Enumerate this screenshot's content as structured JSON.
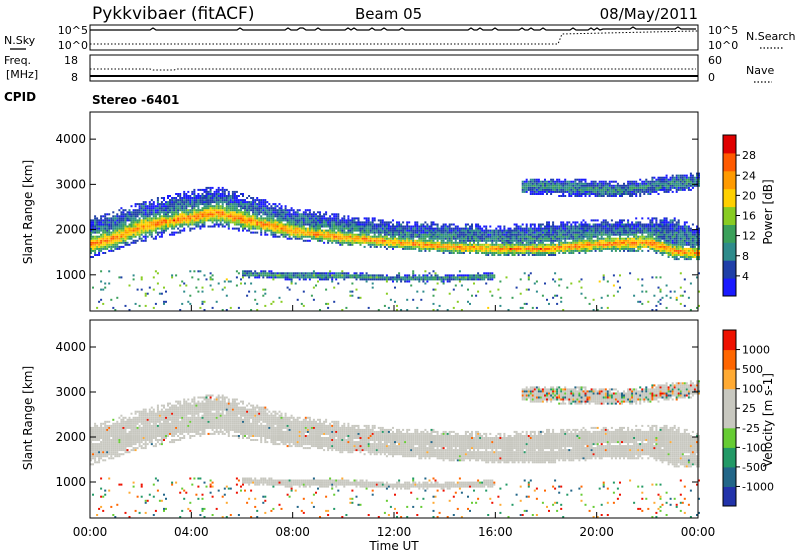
{
  "header": {
    "title": "Pykkvibaer (fitACF)",
    "beam": "Beam 05",
    "date": "08/May/2011"
  },
  "top_panels": {
    "nsky_label": "N.Sky",
    "nsky_ticks": [
      "10^5",
      "10^0"
    ],
    "nsearch_label": "N.Search",
    "nsearch_ticks": [
      "10^5",
      "10^0"
    ],
    "freq_label_1": "Freq.",
    "freq_label_2": "[MHz]",
    "freq_ticks": [
      "18",
      "8"
    ],
    "nave_label": "Nave",
    "nave_ticks": [
      "60",
      "0"
    ],
    "cpid_label": "CPID",
    "cpid_value": "Stereo -6401"
  },
  "colors": {
    "power_scale": [
      "#1a1aff",
      "#1f3fa8",
      "#2e8b8b",
      "#3aa05a",
      "#88cc22",
      "#ffd000",
      "#ff9a00",
      "#ff5a00",
      "#e00000"
    ],
    "velocity_scale": [
      "#2233aa",
      "#226688",
      "#229966",
      "#66cc33",
      "#c8c8c0",
      "#c8c8c0",
      "#ffaa33",
      "#ff6600",
      "#ee1100"
    ],
    "ground_scatter": "#c8c8c0"
  },
  "chart_data": [
    {
      "type": "heatmap",
      "panel": "power",
      "ylabel": "Slant Range [km]",
      "yticks": [
        "1000",
        "2000",
        "3000",
        "4000"
      ],
      "ylim": [
        200,
        4600
      ],
      "xlim": [
        0,
        24
      ],
      "colorbar_label": "Power [dB]",
      "colorbar_ticks": [
        "4",
        "8",
        "12",
        "16",
        "20",
        "24",
        "28"
      ],
      "colorbar_range": [
        0,
        32
      ],
      "bands": [
        {
          "name": "main",
          "t": [
            0,
            1,
            2,
            3,
            4,
            5,
            6,
            8,
            10,
            12,
            14,
            16,
            18,
            20,
            22,
            23,
            24
          ],
          "r": [
            1650,
            1800,
            2050,
            2150,
            2250,
            2350,
            2200,
            1950,
            1800,
            1700,
            1600,
            1550,
            1550,
            1650,
            1700,
            1500,
            1450
          ],
          "w": [
            450,
            500,
            500,
            400,
            450,
            500,
            450,
            350,
            350,
            300,
            300,
            300,
            300,
            350,
            400,
            350,
            300
          ],
          "p": 25
        },
        {
          "name": "outer",
          "t": [
            0,
            2,
            4,
            5,
            6,
            8,
            12,
            16,
            20,
            23,
            24
          ],
          "r": [
            1800,
            2150,
            2400,
            2500,
            2350,
            2100,
            1850,
            1750,
            1850,
            1850,
            1700
          ],
          "w": [
            900,
            900,
            900,
            900,
            850,
            700,
            650,
            650,
            700,
            800,
            700
          ],
          "p": 9
        },
        {
          "name": "upper",
          "t": [
            17,
            19,
            21,
            23,
            24
          ],
          "r": [
            2950,
            2900,
            2850,
            3000,
            3050
          ],
          "w": [
            350,
            400,
            350,
            400,
            350
          ],
          "p": 10
        },
        {
          "name": "mid",
          "t": [
            6,
            8,
            10,
            12,
            14,
            16
          ],
          "r": [
            1000,
            950,
            950,
            900,
            900,
            950
          ],
          "w": [
            150,
            180,
            180,
            150,
            150,
            150
          ],
          "p": 12
        }
      ]
    },
    {
      "type": "heatmap",
      "panel": "velocity",
      "xlabel": "Time UT",
      "ylabel": "Slant Range [km]",
      "yticks": [
        "1000",
        "2000",
        "3000",
        "4000"
      ],
      "xticks": [
        "00:00",
        "04:00",
        "08:00",
        "12:00",
        "16:00",
        "20:00",
        "00:00"
      ],
      "ylim": [
        200,
        4600
      ],
      "xlim": [
        0,
        24
      ],
      "colorbar_label": "Velocity [m s-1]",
      "colorbar_ticks": [
        "1000",
        "500",
        "100",
        "25",
        "-25",
        "-100",
        "-500",
        "-1000"
      ],
      "colorbar_range": [
        -1200,
        1200
      ]
    }
  ]
}
